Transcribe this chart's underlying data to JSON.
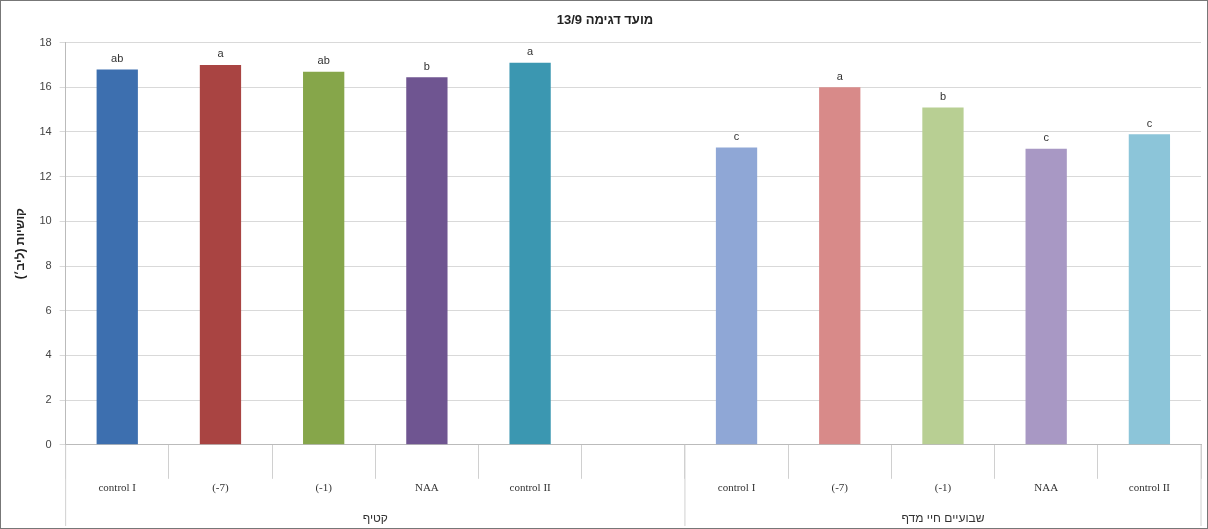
{
  "chart_data": {
    "type": "bar",
    "title": "מועד דגימה 13/9",
    "ylabel": "קושיות (ליב׳)",
    "categories": [
      "control I",
      "(-7)",
      "(-1)",
      "NAA",
      "control II",
      null,
      "control I",
      "(-7)",
      "(-1)",
      "NAA",
      "control II"
    ],
    "values": [
      16.8,
      17.0,
      16.7,
      16.45,
      17.1,
      null,
      13.3,
      16.0,
      15.1,
      13.25,
      13.9
    ],
    "colors": [
      "#3d6faf",
      "#a94442",
      "#86a64a",
      "#6f5591",
      "#3b97b1",
      "#ffffff",
      "#8fa7d6",
      "#d88a89",
      "#b8cf93",
      "#a898c4",
      "#8cc5d9"
    ],
    "value_labels": [
      "ab",
      "a",
      "ab",
      "b",
      "a",
      null,
      "c",
      "a",
      "b",
      "c",
      "c"
    ],
    "annotations": [
      "קטיף",
      "שבועיים חיי מדף"
    ],
    "ylim": [
      0,
      18
    ],
    "yticks": [
      0,
      2,
      4,
      6,
      8,
      10,
      12,
      14,
      16,
      18
    ],
    "grid": "y",
    "legend": false
  }
}
